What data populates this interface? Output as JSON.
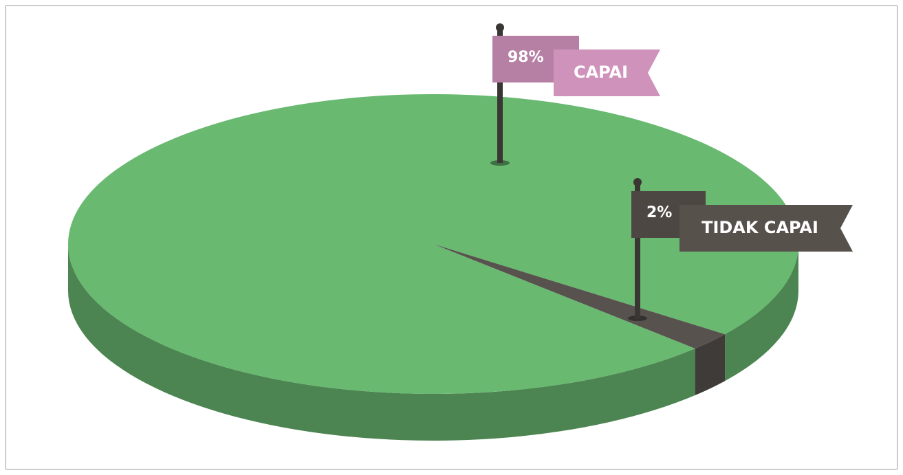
{
  "chart_data": {
    "type": "pie3d",
    "categories": [
      "CAPAI",
      "TIDAK CAPAI"
    ],
    "values": [
      98,
      2
    ],
    "value_labels": [
      "98%",
      "2%"
    ],
    "colors": [
      "#69b971",
      "#58524e"
    ],
    "label_colors": [
      "#cf92bb",
      "#57514c"
    ]
  }
}
